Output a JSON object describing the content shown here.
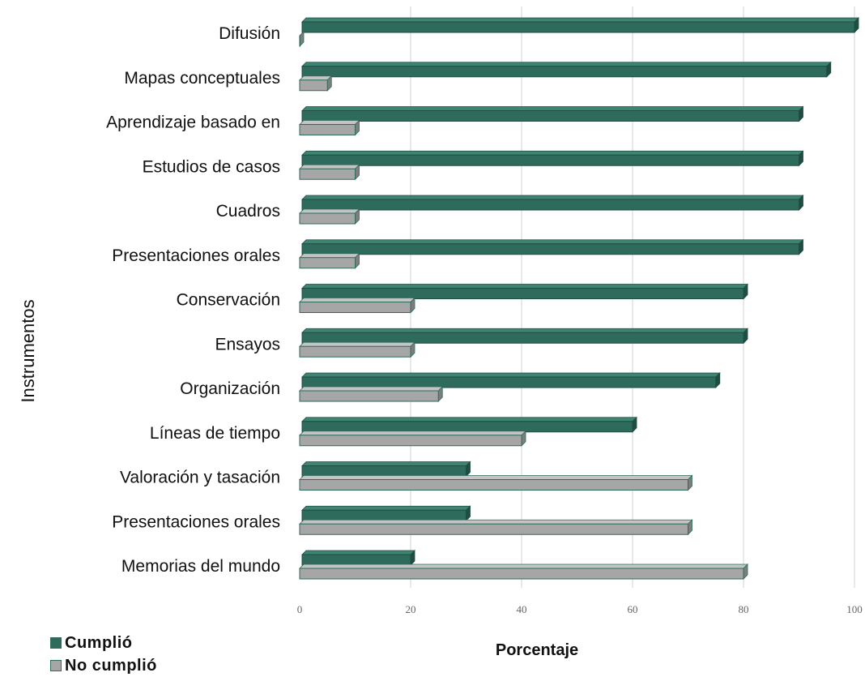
{
  "chart_data": {
    "type": "bar",
    "orientation": "horizontal",
    "categories": [
      "Difusión",
      "Mapas conceptuales",
      "Aprendizaje basado en",
      "Estudios de casos",
      "Cuadros",
      "Presentaciones orales",
      "Conservación",
      "Ensayos",
      "Organización",
      "Líneas de tiempo",
      "Valoración y tasación",
      "Presentaciones orales",
      "Memorias del mundo"
    ],
    "series": [
      {
        "name": "Cumplió",
        "color": "#2e6b5c",
        "values": [
          100,
          95,
          90,
          90,
          90,
          90,
          80,
          80,
          75,
          60,
          30,
          30,
          20
        ]
      },
      {
        "name": "No cumplió",
        "color": "#a6a6a6",
        "values": [
          0,
          5,
          10,
          10,
          10,
          10,
          20,
          20,
          25,
          40,
          70,
          70,
          80
        ]
      }
    ],
    "xticks": [
      "0",
      "20",
      "40",
      "60",
      "80",
      "100"
    ],
    "xlim": [
      0,
      100
    ],
    "xlabel": "Porcentaje",
    "ylabel": "Instrumentos",
    "grid": "vertical",
    "legend_position": "bottom-left",
    "style": "3d"
  }
}
